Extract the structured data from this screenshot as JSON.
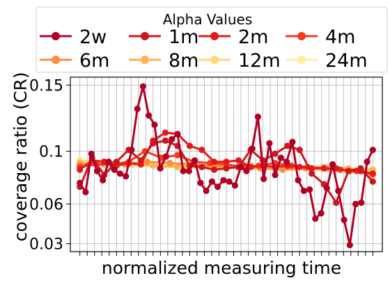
{
  "chart_data": {
    "type": "line",
    "title": "",
    "xlabel": "normalized measuring time",
    "ylabel": "coverage ratio (CR)",
    "ylim": [
      0.024,
      0.156
    ],
    "yticks": [
      0.03,
      0.06,
      0.1,
      0.15
    ],
    "ytick_labels": [
      "0.03",
      "0.06",
      "0.1",
      "0.15"
    ],
    "xlim": [
      -1.3,
      41.3
    ],
    "grid": true,
    "legend": {
      "title": "Alpha Values",
      "placement": "top",
      "columns": 4
    },
    "series": [
      {
        "name": "2w",
        "color": "#b10026",
        "values": [
          0.076,
          0.069,
          0.098,
          0.085,
          0.078,
          0.092,
          0.086,
          0.083,
          0.081,
          0.101,
          0.132,
          0.149,
          0.127,
          0.12,
          0.087,
          0.096,
          0.109,
          0.113,
          0.085,
          0.085,
          0.093,
          0.076,
          0.07,
          0.077,
          0.073,
          0.078,
          0.077,
          0.074,
          0.088,
          0.085,
          0.102,
          0.126,
          0.079,
          0.106,
          0.082,
          0.095,
          0.092,
          0.107,
          0.078,
          0.07,
          0.071,
          0.049,
          0.053,
          0.072,
          0.09,
          0.07,
          0.048,
          0.029,
          0.06,
          0.061,
          0.092,
          0.101
        ]
      },
      {
        "name": "1m",
        "color": "#cb181d",
        "values": [
          0.073,
          0.095,
          0.082,
          0.092,
          0.101,
          0.093,
          0.106,
          0.108,
          0.104,
          0.089,
          0.088,
          0.086,
          0.087,
          0.088,
          0.101,
          0.093,
          0.098,
          0.104,
          0.101,
          0.083,
          0.075,
          0.061,
          0.085,
          0.087,
          0.077
        ]
      },
      {
        "name": "2m",
        "color": "#e31a1c",
        "values": [
          0.086,
          0.093,
          0.092,
          0.089,
          0.091,
          0.09,
          0.108,
          0.114,
          0.113,
          0.104,
          0.101,
          0.092,
          0.092,
          0.093,
          0.088,
          0.089,
          0.088,
          0.089,
          0.088,
          0.087,
          0.087,
          0.087,
          0.085,
          0.085,
          0.083
        ]
      },
      {
        "name": "4m",
        "color": "#f03b20",
        "values": [
          0.088,
          0.09,
          0.09,
          0.092,
          0.1,
          0.095,
          0.097,
          0.092,
          0.091,
          0.09,
          0.088,
          0.089,
          0.091,
          0.089,
          0.088,
          0.087,
          0.086,
          0.085,
          0.083
        ]
      },
      {
        "name": "6m",
        "color": "#fd8d3c",
        "values": [
          0.09,
          0.091,
          0.09,
          0.092,
          0.091,
          0.09,
          0.089,
          0.088,
          0.087,
          0.086,
          0.087,
          0.087,
          0.085,
          0.082
        ]
      },
      {
        "name": "8m",
        "color": "#feb24c",
        "values": [
          0.091,
          0.09,
          0.09,
          0.089,
          0.088,
          0.088,
          0.088,
          0.089,
          0.088,
          0.088,
          0.088,
          0.087,
          0.086
        ]
      },
      {
        "name": "12m",
        "color": "#fed976",
        "values": [
          0.093,
          0.091,
          0.09,
          0.089,
          0.089,
          0.088,
          0.088,
          0.088,
          0.087,
          0.087,
          0.086,
          0.085
        ]
      },
      {
        "name": "24m",
        "color": "#ffeda0",
        "values": [
          0.092,
          0.091,
          0.09,
          0.089,
          0.089,
          0.088,
          0.088,
          0.087,
          0.087,
          0.086,
          0.086
        ]
      }
    ],
    "series_styles": [
      {
        "name": "2w",
        "color": "#b10026"
      },
      {
        "name": "1m",
        "color": "#cb181d"
      },
      {
        "name": "2m",
        "color": "#e31a1c"
      },
      {
        "name": "4m",
        "color": "#f03b20"
      },
      {
        "name": "6m",
        "color": "#fd8d3c"
      },
      {
        "name": "8m",
        "color": "#feb24c"
      },
      {
        "name": "12m",
        "color": "#fed976"
      },
      {
        "name": "24m",
        "color": "#ffeda0"
      }
    ]
  }
}
